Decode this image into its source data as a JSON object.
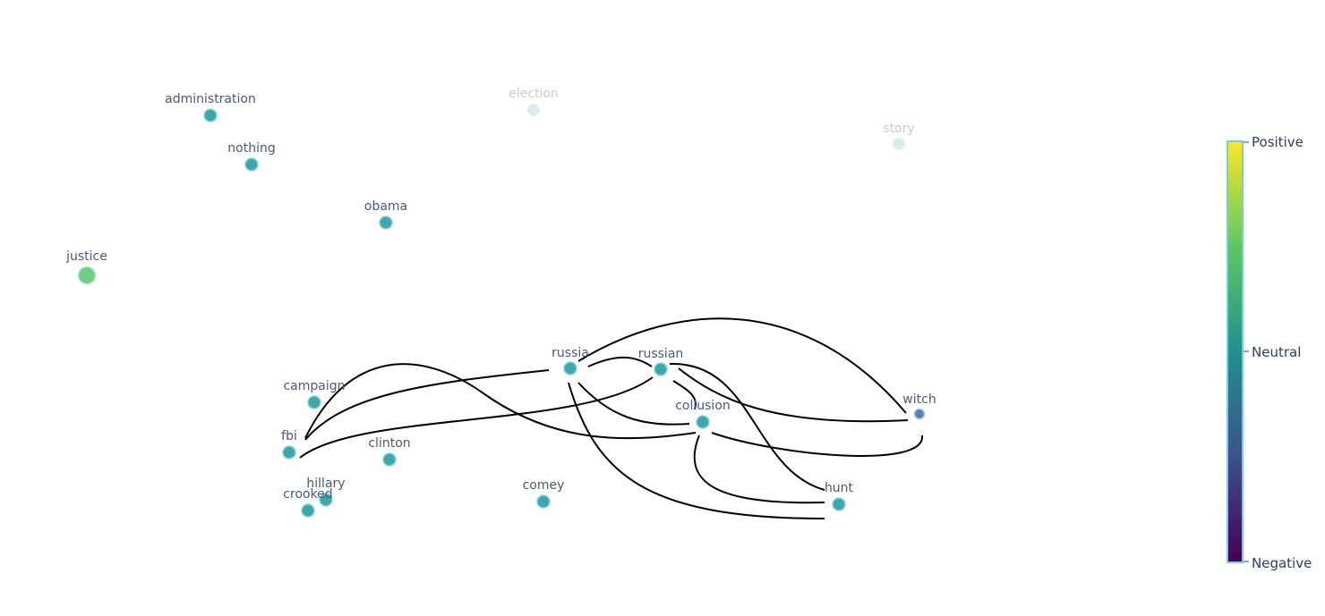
{
  "colorbar": {
    "labels": {
      "top": "Positive",
      "middle": "Neutral",
      "bottom": "Negative"
    },
    "colors": [
      "#440154",
      "#3b528b",
      "#21908d",
      "#5dc863",
      "#fde725"
    ],
    "border_color": "#7fc6e8"
  },
  "nodes": [
    {
      "id": "administration",
      "label": "administration",
      "color": "#3aa8ad",
      "faded": false
    },
    {
      "id": "election",
      "label": "election",
      "color": "#d6eeee",
      "faded": true
    },
    {
      "id": "story",
      "label": "story",
      "color": "#d6eeee",
      "faded": true
    },
    {
      "id": "nothing",
      "label": "nothing",
      "color": "#3aa8ad",
      "faded": false
    },
    {
      "id": "obama",
      "label": "obama",
      "color": "#3aa8ad",
      "faded": false
    },
    {
      "id": "justice",
      "label": "justice",
      "color": "#6fcf88",
      "faded": false
    },
    {
      "id": "russia",
      "label": "russia",
      "color": "#3aa8ad",
      "faded": false
    },
    {
      "id": "russian",
      "label": "russian",
      "color": "#3aa8ad",
      "faded": false
    },
    {
      "id": "witch",
      "label": "witch",
      "color": "#4f86b4",
      "faded": false
    },
    {
      "id": "campaign",
      "label": "campaign",
      "color": "#3aa8ad",
      "faded": false
    },
    {
      "id": "collusion",
      "label": "collusion",
      "color": "#3aa8ad",
      "faded": false
    },
    {
      "id": "fbi",
      "label": "fbi",
      "color": "#3aa8ad",
      "faded": false
    },
    {
      "id": "clinton",
      "label": "clinton",
      "color": "#3aa8ad",
      "faded": false
    },
    {
      "id": "hillary",
      "label": "hillary",
      "color": "#3aa8ad",
      "faded": false
    },
    {
      "id": "crooked",
      "label": "crooked",
      "color": "#3aa8ad",
      "faded": false
    },
    {
      "id": "comey",
      "label": "comey",
      "color": "#3aa8ad",
      "faded": false
    },
    {
      "id": "hunt",
      "label": "hunt",
      "color": "#3aa8ad",
      "faded": false
    }
  ],
  "edges": [
    {
      "from": "russia",
      "to": "russian"
    },
    {
      "from": "russia",
      "to": "witch"
    },
    {
      "from": "russia",
      "to": "collusion"
    },
    {
      "from": "russia",
      "to": "hunt"
    },
    {
      "from": "russia",
      "to": "fbi"
    },
    {
      "from": "russian",
      "to": "collusion"
    },
    {
      "from": "russian",
      "to": "witch"
    },
    {
      "from": "russian",
      "to": "hunt"
    },
    {
      "from": "russian",
      "to": "fbi"
    },
    {
      "from": "collusion",
      "to": "witch"
    },
    {
      "from": "collusion",
      "to": "hunt"
    },
    {
      "from": "collusion",
      "to": "fbi"
    }
  ]
}
